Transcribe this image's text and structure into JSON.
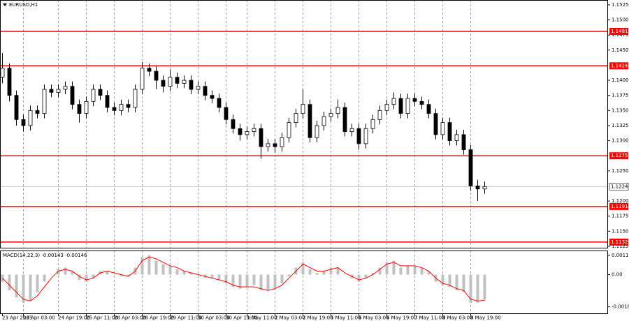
{
  "chart_data": {
    "type": "candlestick",
    "title": "EURUSD,H1",
    "categories": [
      "23 Apr 2025",
      null,
      null,
      "24 Apr 03:00",
      null,
      null,
      null,
      null,
      "24 Apr 19:00",
      null,
      null,
      null,
      "25 Apr 11:00",
      null,
      null,
      null,
      "28 Apr 03:00",
      null,
      null,
      null,
      "28 Apr 19:00",
      null,
      null,
      null,
      "29 Apr 11:00",
      null,
      null,
      null,
      "30 Apr 03:00",
      null,
      null,
      null,
      "30 Apr 19:00",
      null,
      null,
      "1 May 11:00",
      null,
      null,
      null,
      "2 May 03:00",
      null,
      null,
      null,
      "2 May 19:00",
      null,
      null,
      null,
      "5 May 11:00",
      null,
      null,
      null,
      "6 May 03:00",
      null,
      null,
      null,
      "6 May 19:00",
      null,
      null,
      null,
      "7 May 11:00",
      null,
      null,
      null,
      "8 May 03:00",
      null,
      null,
      null,
      "8 May 19:00",
      null,
      null
    ],
    "open": [
      1.1405,
      1.142,
      1.1375,
      1.1335,
      1.1325,
      1.135,
      1.1345,
      1.1385,
      1.138,
      1.1385,
      1.139,
      1.136,
      1.1345,
      1.1365,
      1.1385,
      1.1375,
      1.1355,
      1.135,
      1.136,
      1.1355,
      1.1385,
      1.142,
      1.1415,
      1.14,
      1.139,
      1.1405,
      1.1395,
      1.14,
      1.1385,
      1.139,
      1.1375,
      1.137,
      1.1355,
      1.1335,
      1.132,
      1.131,
      1.1315,
      1.132,
      1.129,
      1.1295,
      1.129,
      1.1305,
      1.133,
      1.1345,
      1.136,
      1.1305,
      1.1325,
      1.134,
      1.1345,
      1.1355,
      1.1315,
      1.132,
      1.1295,
      1.132,
      1.1335,
      1.135,
      1.136,
      1.137,
      1.1345,
      1.137,
      1.1365,
      1.136,
      1.1345,
      1.131,
      1.133,
      1.13,
      1.131,
      1.1285,
      1.1225,
      1.122
    ],
    "high": [
      1.1445,
      1.1428,
      1.1383,
      1.1343,
      1.1358,
      1.1358,
      1.1393,
      1.1393,
      1.1393,
      1.1398,
      1.1398,
      1.1368,
      1.1373,
      1.1393,
      1.1393,
      1.1383,
      1.1363,
      1.1368,
      1.1368,
      1.1393,
      1.143,
      1.1428,
      1.1423,
      1.1408,
      1.1418,
      1.1413,
      1.1408,
      1.1408,
      1.1398,
      1.1398,
      1.1383,
      1.1378,
      1.1363,
      1.1343,
      1.1328,
      1.1323,
      1.1328,
      1.1328,
      1.1303,
      1.1303,
      1.1313,
      1.1338,
      1.1353,
      1.1385,
      1.1368,
      1.1333,
      1.1348,
      1.1353,
      1.1368,
      1.1363,
      1.1328,
      1.1328,
      1.1328,
      1.1343,
      1.1358,
      1.1368,
      1.138,
      1.1378,
      1.1378,
      1.1378,
      1.1373,
      1.1368,
      1.1353,
      1.1338,
      1.1338,
      1.1318,
      1.1318,
      1.1293,
      1.1235,
      1.1232
    ],
    "low": [
      1.1395,
      1.1365,
      1.1325,
      1.1315,
      1.1317,
      1.1337,
      1.1337,
      1.1372,
      1.1372,
      1.1377,
      1.1352,
      1.133,
      1.1337,
      1.1357,
      1.1367,
      1.1347,
      1.1342,
      1.1342,
      1.1347,
      1.1347,
      1.1377,
      1.1407,
      1.1385,
      1.138,
      1.1382,
      1.1387,
      1.1387,
      1.1377,
      1.1377,
      1.1367,
      1.1362,
      1.1347,
      1.1327,
      1.1312,
      1.13,
      1.1302,
      1.1307,
      1.127,
      1.1282,
      1.128,
      1.1282,
      1.1297,
      1.1322,
      1.1337,
      1.1297,
      1.1297,
      1.1317,
      1.1332,
      1.1337,
      1.1307,
      1.1307,
      1.1285,
      1.1287,
      1.1312,
      1.1327,
      1.1342,
      1.1352,
      1.1337,
      1.1337,
      1.1357,
      1.1352,
      1.1337,
      1.1302,
      1.1302,
      1.1292,
      1.1292,
      1.1277,
      1.1217,
      1.12,
      1.1212
    ],
    "close": [
      1.142,
      1.1375,
      1.1335,
      1.1325,
      1.135,
      1.1345,
      1.1385,
      1.138,
      1.1385,
      1.139,
      1.136,
      1.1345,
      1.1365,
      1.1385,
      1.1375,
      1.1355,
      1.135,
      1.136,
      1.1355,
      1.1385,
      1.142,
      1.1415,
      1.14,
      1.139,
      1.1405,
      1.1395,
      1.14,
      1.1385,
      1.139,
      1.1375,
      1.137,
      1.1355,
      1.1335,
      1.132,
      1.131,
      1.1315,
      1.132,
      1.129,
      1.1295,
      1.129,
      1.1305,
      1.133,
      1.1345,
      1.136,
      1.1305,
      1.1325,
      1.134,
      1.1345,
      1.1355,
      1.1315,
      1.132,
      1.1295,
      1.132,
      1.1335,
      1.135,
      1.136,
      1.137,
      1.1345,
      1.137,
      1.1365,
      1.136,
      1.1345,
      1.131,
      1.133,
      1.13,
      1.131,
      1.1285,
      1.1225,
      1.122,
      1.1224
    ],
    "ylim": [
      1.11215,
      1.1533
    ],
    "yticks": [
      1.1525,
      {
        "value": 1.15,
        "label": "1.1500"
      },
      1.1475,
      {
        "value": 1.145,
        "label": "1.1450"
      },
      {
        "value": 1.14,
        "label": "1.1400"
      },
      1.1375,
      {
        "value": 1.135,
        "label": "1.1350"
      },
      1.1325,
      {
        "value": 1.13,
        "label": "1.1300"
      },
      {
        "value": 1.125,
        "label": "1.1250"
      },
      {
        "value": 1.12,
        "label": "1.1200"
      },
      1.1175,
      {
        "value": 1.115,
        "label": "1.1150"
      },
      1.1125
    ],
    "levels": [
      1.1481,
      1.1424,
      1.1275,
      1.1191,
      1.1132
    ],
    "level_color": "#ff0000",
    "current_price": 1.1224,
    "indicator": {
      "label": "MACD(14,22,3) -0.00143 -0.00146",
      "histogram": [
        -0.0004,
        -0.0009,
        -0.0013,
        -0.0016,
        -0.0015,
        -0.001,
        -0.0004,
        0.0,
        0.0003,
        0.0004,
        0.0002,
        -0.0003,
        -0.0004,
        -0.0002,
        0.0002,
        0.0002,
        0.0,
        -0.0001,
        -0.0001,
        0.0004,
        0.001,
        0.0011,
        0.0008,
        0.0006,
        0.0005,
        0.0003,
        0.0002,
        0.0001,
        0.0,
        -0.0002,
        -0.0002,
        -0.0003,
        -0.0005,
        -0.0007,
        -0.0008,
        -0.0007,
        -0.0006,
        -0.0009,
        -0.0009,
        -0.0008,
        -0.0005,
        -0.0001,
        0.0004,
        0.0007,
        0.0003,
        0.0001,
        0.0002,
        0.0004,
        0.0004,
        0.0,
        -0.0002,
        -0.0004,
        -0.0002,
        0.0001,
        0.0004,
        0.0007,
        0.0008,
        0.0004,
        0.0005,
        0.0005,
        0.0004,
        0.0002,
        -0.0004,
        -0.0006,
        -0.0007,
        -0.0009,
        -0.001,
        -0.0016,
        -0.0016,
        -0.00143
      ],
      "signal": [
        -0.0002,
        -0.0006,
        -0.001,
        -0.0014,
        -0.0015,
        -0.0012,
        -0.0007,
        -0.0002,
        0.0002,
        0.0003,
        0.0002,
        -0.0001,
        -0.0003,
        -0.0002,
        0.0001,
        0.0002,
        0.0001,
        0.0,
        -0.0001,
        0.0002,
        0.0008,
        0.001,
        0.0009,
        0.0007,
        0.0005,
        0.0004,
        0.0002,
        0.0001,
        0.0,
        -0.0001,
        -0.0002,
        -0.0003,
        -0.0004,
        -0.0006,
        -0.0007,
        -0.0007,
        -0.0007,
        -0.0008,
        -0.0009,
        -0.0008,
        -0.0006,
        -0.0002,
        0.0002,
        0.0006,
        0.0004,
        0.0002,
        0.0002,
        0.0003,
        0.0004,
        0.0001,
        -0.0001,
        -0.0003,
        -0.0002,
        0.0,
        0.0003,
        0.0006,
        0.0007,
        0.0005,
        0.0005,
        0.0005,
        0.0004,
        0.0002,
        -0.0002,
        -0.0005,
        -0.0006,
        -0.0008,
        -0.0009,
        -0.0014,
        -0.0015,
        -0.00146
      ],
      "histogram_color": "#c0c0c0",
      "signal_color": "#ff0000",
      "ylim": [
        -0.00224,
        0.00137
      ],
      "yticks": [
        0.0011,
        {
          "value": 0,
          "label": "0.00"
        },
        -0.00183
      ]
    }
  }
}
